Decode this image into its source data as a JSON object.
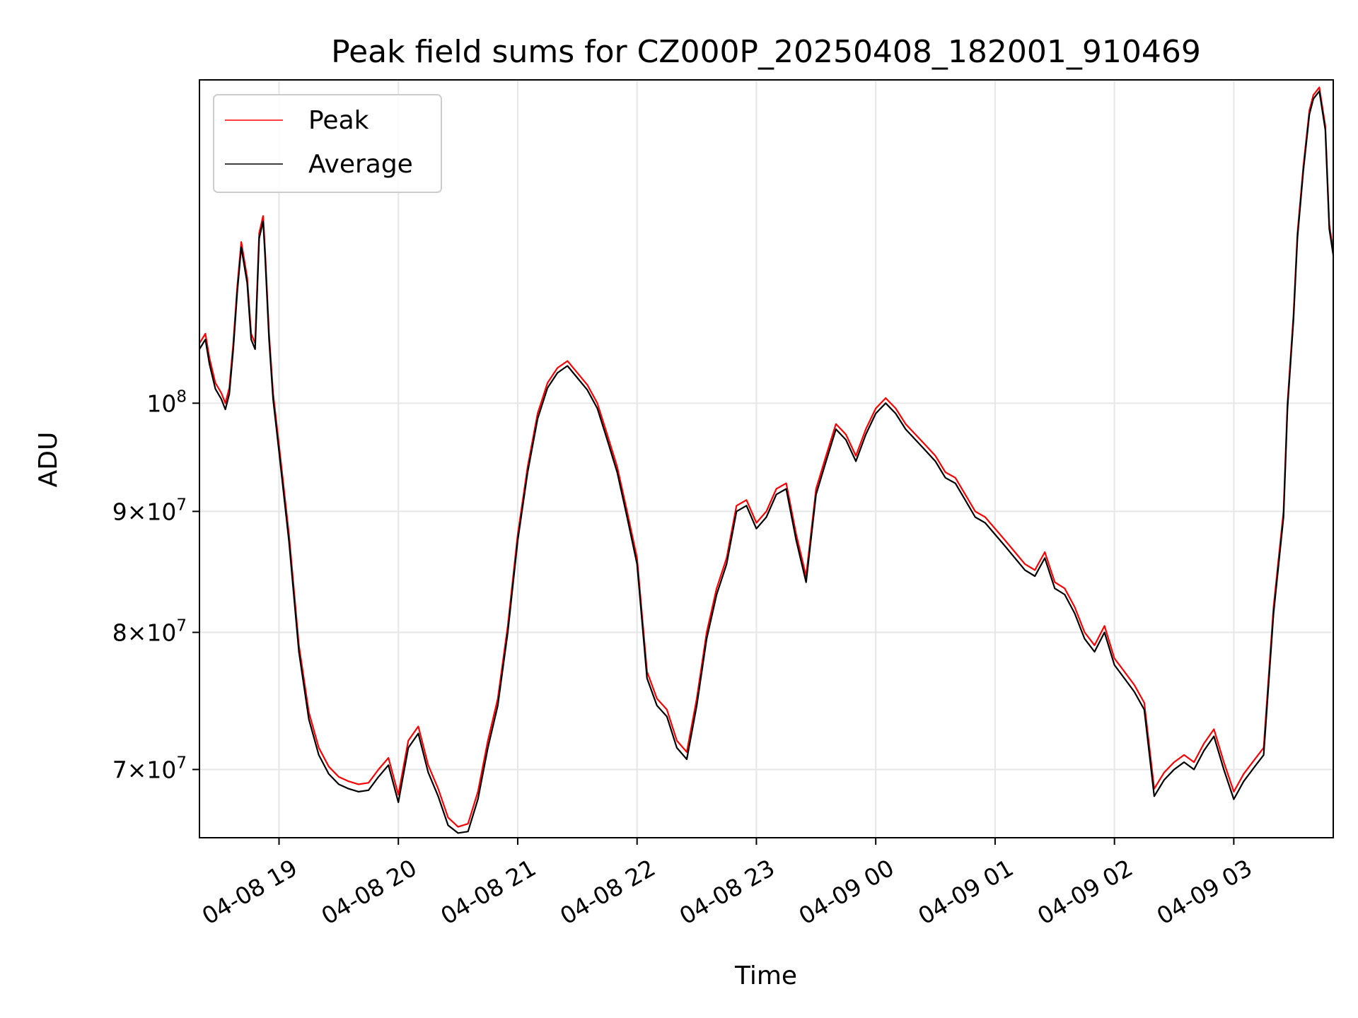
{
  "chart_data": {
    "type": "line",
    "title": "Peak field sums for CZ000P_20250408_182001_910469",
    "xlabel": "Time",
    "ylabel": "ADU",
    "x_scale": "time",
    "y_scale": "log",
    "xlim": [
      "2025-04-08 18:20",
      "2025-04-09 03:50"
    ],
    "ylim": [
      65500000,
      137000000
    ],
    "x_ticks": [
      {
        "value": "2025-04-08 19:00",
        "label": "04-08 19"
      },
      {
        "value": "2025-04-08 20:00",
        "label": "04-08 20"
      },
      {
        "value": "2025-04-08 21:00",
        "label": "04-08 21"
      },
      {
        "value": "2025-04-08 22:00",
        "label": "04-08 22"
      },
      {
        "value": "2025-04-08 23:00",
        "label": "04-08 23"
      },
      {
        "value": "2025-04-09 00:00",
        "label": "04-09 00"
      },
      {
        "value": "2025-04-09 01:00",
        "label": "04-09 01"
      },
      {
        "value": "2025-04-09 02:00",
        "label": "04-09 02"
      },
      {
        "value": "2025-04-09 03:00",
        "label": "04-09 03"
      }
    ],
    "y_ticks": [
      {
        "value": 70000000,
        "base": "7",
        "exp": "7"
      },
      {
        "value": 80000000,
        "base": "8",
        "exp": "7"
      },
      {
        "value": 90000000,
        "base": "9",
        "exp": "7"
      },
      {
        "value": 100000000,
        "base": "",
        "exp": "8"
      }
    ],
    "grid": true,
    "legend_position": "top-left",
    "x": [
      "2025-04-08 18:20",
      "2025-04-08 18:23",
      "2025-04-08 18:25",
      "2025-04-08 18:28",
      "2025-04-08 18:31",
      "2025-04-08 18:33",
      "2025-04-08 18:35",
      "2025-04-08 18:37",
      "2025-04-08 18:39",
      "2025-04-08 18:41",
      "2025-04-08 18:44",
      "2025-04-08 18:46",
      "2025-04-08 18:48",
      "2025-04-08 18:50",
      "2025-04-08 18:52",
      "2025-04-08 18:53",
      "2025-04-08 18:55",
      "2025-04-08 18:57",
      "2025-04-08 19:00",
      "2025-04-08 19:05",
      "2025-04-08 19:10",
      "2025-04-08 19:15",
      "2025-04-08 19:20",
      "2025-04-08 19:25",
      "2025-04-08 19:30",
      "2025-04-08 19:35",
      "2025-04-08 19:40",
      "2025-04-08 19:45",
      "2025-04-08 19:50",
      "2025-04-08 19:55",
      "2025-04-08 20:00",
      "2025-04-08 20:05",
      "2025-04-08 20:10",
      "2025-04-08 20:15",
      "2025-04-08 20:20",
      "2025-04-08 20:25",
      "2025-04-08 20:30",
      "2025-04-08 20:35",
      "2025-04-08 20:40",
      "2025-04-08 20:45",
      "2025-04-08 20:50",
      "2025-04-08 20:55",
      "2025-04-08 21:00",
      "2025-04-08 21:05",
      "2025-04-08 21:10",
      "2025-04-08 21:15",
      "2025-04-08 21:20",
      "2025-04-08 21:25",
      "2025-04-08 21:30",
      "2025-04-08 21:35",
      "2025-04-08 21:40",
      "2025-04-08 21:45",
      "2025-04-08 21:50",
      "2025-04-08 21:55",
      "2025-04-08 22:00",
      "2025-04-08 22:05",
      "2025-04-08 22:10",
      "2025-04-08 22:15",
      "2025-04-08 22:20",
      "2025-04-08 22:25",
      "2025-04-08 22:30",
      "2025-04-08 22:35",
      "2025-04-08 22:40",
      "2025-04-08 22:45",
      "2025-04-08 22:50",
      "2025-04-08 22:55",
      "2025-04-08 23:00",
      "2025-04-08 23:05",
      "2025-04-08 23:10",
      "2025-04-08 23:15",
      "2025-04-08 23:20",
      "2025-04-08 23:25",
      "2025-04-08 23:30",
      "2025-04-08 23:35",
      "2025-04-08 23:40",
      "2025-04-08 23:45",
      "2025-04-08 23:50",
      "2025-04-08 23:55",
      "2025-04-09 00:00",
      "2025-04-09 00:05",
      "2025-04-09 00:10",
      "2025-04-09 00:15",
      "2025-04-09 00:20",
      "2025-04-09 00:25",
      "2025-04-09 00:30",
      "2025-04-09 00:35",
      "2025-04-09 00:40",
      "2025-04-09 00:45",
      "2025-04-09 00:50",
      "2025-04-09 00:55",
      "2025-04-09 01:00",
      "2025-04-09 01:05",
      "2025-04-09 01:10",
      "2025-04-09 01:15",
      "2025-04-09 01:20",
      "2025-04-09 01:25",
      "2025-04-09 01:30",
      "2025-04-09 01:35",
      "2025-04-09 01:40",
      "2025-04-09 01:45",
      "2025-04-09 01:50",
      "2025-04-09 01:55",
      "2025-04-09 02:00",
      "2025-04-09 02:05",
      "2025-04-09 02:10",
      "2025-04-09 02:15",
      "2025-04-09 02:20",
      "2025-04-09 02:25",
      "2025-04-09 02:30",
      "2025-04-09 02:35",
      "2025-04-09 02:40",
      "2025-04-09 02:45",
      "2025-04-09 02:50",
      "2025-04-09 02:55",
      "2025-04-09 03:00",
      "2025-04-09 03:05",
      "2025-04-09 03:10",
      "2025-04-09 03:15",
      "2025-04-09 03:20",
      "2025-04-09 03:25",
      "2025-04-09 03:27",
      "2025-04-09 03:30",
      "2025-04-09 03:32",
      "2025-04-09 03:35",
      "2025-04-09 03:38",
      "2025-04-09 03:40",
      "2025-04-09 03:43",
      "2025-04-09 03:46",
      "2025-04-09 03:48",
      "2025-04-09 03:50"
    ],
    "series": [
      {
        "name": "Peak",
        "color": "#ff0000",
        "values": [
          106000000,
          107000000,
          104500000,
          102000000,
          101000000,
          100000000,
          101500000,
          106000000,
          112000000,
          117000000,
          113000000,
          107000000,
          106000000,
          118000000,
          120000000,
          116000000,
          107000000,
          101000000,
          96000000,
          88000000,
          79000000,
          74000000,
          71500000,
          70200000,
          69500000,
          69200000,
          69000000,
          69100000,
          70000000,
          70800000,
          68300000,
          72000000,
          73000000,
          70300000,
          68700000,
          66800000,
          66200000,
          66400000,
          68500000,
          72000000,
          75000000,
          80500000,
          88000000,
          94000000,
          99000000,
          102000000,
          103500000,
          104200000,
          103000000,
          101800000,
          100000000,
          97000000,
          94000000,
          90000000,
          86000000,
          77000000,
          75000000,
          74200000,
          72000000,
          71200000,
          75000000,
          80000000,
          83500000,
          86000000,
          90500000,
          91000000,
          89000000,
          90000000,
          92000000,
          92500000,
          88000000,
          84500000,
          92000000,
          95000000,
          98000000,
          97000000,
          95000000,
          97500000,
          99500000,
          100500000,
          99500000,
          98000000,
          97000000,
          96000000,
          95000000,
          93500000,
          93000000,
          91500000,
          90000000,
          89500000,
          88500000,
          87500000,
          86500000,
          85500000,
          85000000,
          86500000,
          84000000,
          83500000,
          82000000,
          80000000,
          79000000,
          80500000,
          78000000,
          77000000,
          76000000,
          74700000,
          68700000,
          69800000,
          70500000,
          71000000,
          70500000,
          71800000,
          72800000,
          70500000,
          68500000,
          69700000,
          70600000,
          71500000,
          82000000,
          90000000,
          100000000,
          109000000,
          118000000,
          126000000,
          133000000,
          135000000,
          136000000,
          131000000,
          119000000,
          116000000
        ]
      },
      {
        "name": "Average",
        "color": "#000000",
        "values": [
          105400000,
          106400000,
          103900000,
          101400000,
          100400000,
          99400000,
          100900000,
          105400000,
          111400000,
          116400000,
          112400000,
          106400000,
          105400000,
          117400000,
          119400000,
          115400000,
          106400000,
          100400000,
          95400000,
          87400000,
          78500000,
          73500000,
          71000000,
          69700000,
          69000000,
          68700000,
          68500000,
          68600000,
          69500000,
          70300000,
          67800000,
          71500000,
          72500000,
          69800000,
          68200000,
          66300000,
          65800000,
          65900000,
          68000000,
          71500000,
          74500000,
          80000000,
          87500000,
          93500000,
          98500000,
          101500000,
          103000000,
          103700000,
          102500000,
          101300000,
          99500000,
          96500000,
          93500000,
          89500000,
          85500000,
          76500000,
          74500000,
          73700000,
          71500000,
          70700000,
          74500000,
          79500000,
          83000000,
          85500000,
          90000000,
          90500000,
          88500000,
          89500000,
          91500000,
          92000000,
          87500000,
          84000000,
          91500000,
          94500000,
          97500000,
          96500000,
          94500000,
          97000000,
          99000000,
          100000000,
          99000000,
          97500000,
          96500000,
          95500000,
          94500000,
          93000000,
          92500000,
          91000000,
          89500000,
          89000000,
          88000000,
          87000000,
          86000000,
          85000000,
          84500000,
          86000000,
          83500000,
          83000000,
          81500000,
          79500000,
          78500000,
          80000000,
          77500000,
          76500000,
          75500000,
          74200000,
          68200000,
          69300000,
          70000000,
          70500000,
          70000000,
          71300000,
          72300000,
          70000000,
          68000000,
          69200000,
          70100000,
          71000000,
          81500000,
          89500000,
          99500000,
          108500000,
          117500000,
          125500000,
          132500000,
          134500000,
          135500000,
          130500000,
          118500000,
          115500000
        ]
      }
    ]
  }
}
